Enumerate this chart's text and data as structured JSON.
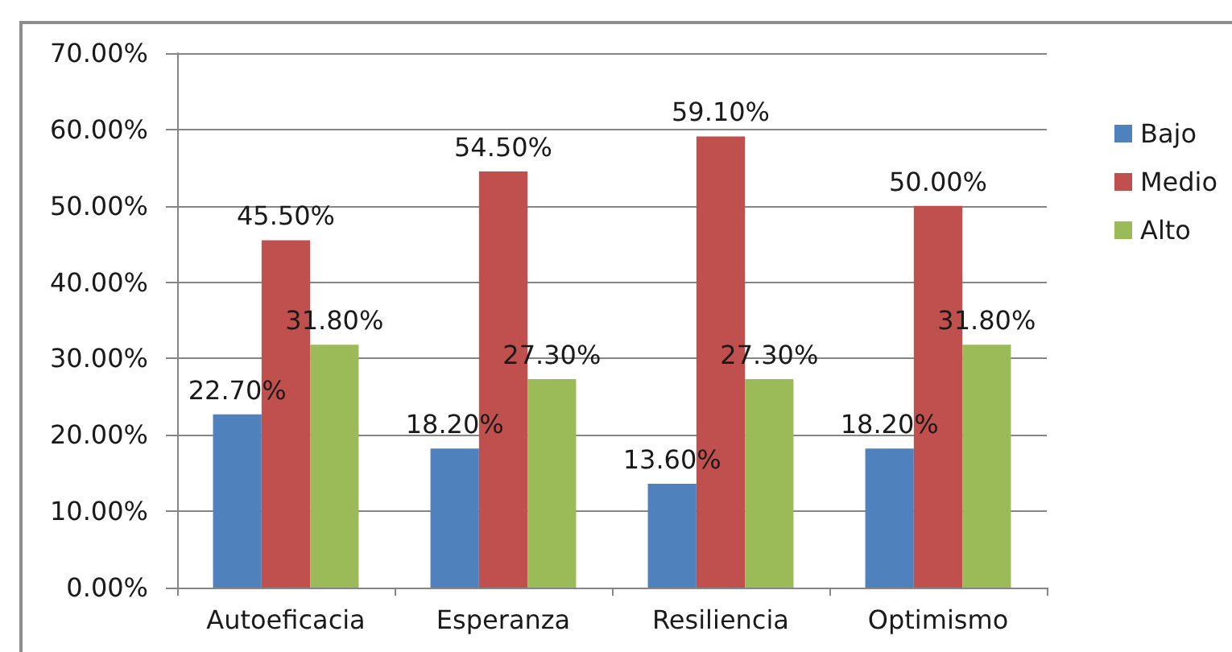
{
  "chart_data": {
    "type": "bar",
    "categories": [
      "Autoeficacia",
      "Esperanza",
      "Resiliencia",
      "Optimismo"
    ],
    "series": [
      {
        "name": "Bajo",
        "color": "#4f81bd",
        "values": [
          22.7,
          18.2,
          13.6,
          18.2
        ],
        "value_labels": [
          "22.70%",
          "18.20%",
          "13.60%",
          "18.20%"
        ]
      },
      {
        "name": "Medio",
        "color": "#c0504d",
        "values": [
          45.5,
          54.5,
          59.1,
          50.0
        ],
        "value_labels": [
          "45.50%",
          "54.50%",
          "59.10%",
          "50.00%"
        ]
      },
      {
        "name": "Alto",
        "color": "#9bbb59",
        "values": [
          31.8,
          27.3,
          27.3,
          31.8
        ],
        "value_labels": [
          "31.80%",
          "27.30%",
          "27.30%",
          "31.80%"
        ]
      }
    ],
    "ylim": [
      0,
      70
    ],
    "yticks": [
      {
        "value": 0,
        "label": "0.00%"
      },
      {
        "value": 10,
        "label": "10.00%"
      },
      {
        "value": 20,
        "label": "20.00%"
      },
      {
        "value": 30,
        "label": "30.00%"
      },
      {
        "value": 40,
        "label": "40.00%"
      },
      {
        "value": 50,
        "label": "50.00%"
      },
      {
        "value": 60,
        "label": "60.00%"
      },
      {
        "value": 70,
        "label": "70.00%"
      }
    ],
    "grid": "y",
    "legend": "right"
  }
}
